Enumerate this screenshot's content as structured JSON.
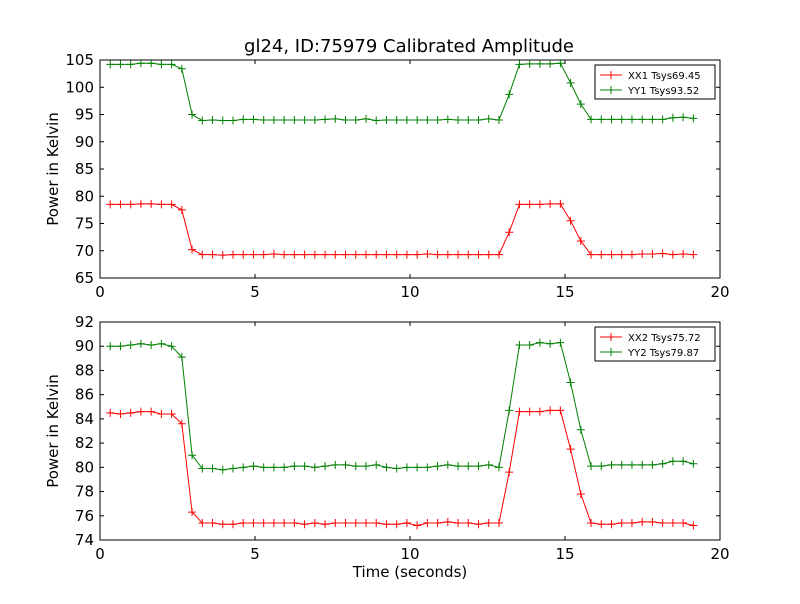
{
  "title": "gl24, ID:75979 Calibrated Amplitude",
  "colors": {
    "red": "#ff0000",
    "green": "#008000",
    "axis": "#000000",
    "background": "#ffffff"
  },
  "chart_data": [
    {
      "type": "line",
      "title": "gl24, ID:75979 Calibrated Amplitude",
      "xlabel": "",
      "ylabel": "Power in Kelvin",
      "xlim": [
        0,
        20
      ],
      "ylim": [
        65,
        105
      ],
      "xticks": [
        0,
        5,
        10,
        15,
        20
      ],
      "yticks": [
        65,
        70,
        75,
        80,
        85,
        90,
        95,
        100,
        105
      ],
      "grid": false,
      "legend_position": "top-right",
      "marker": "plus",
      "x": [
        0.33,
        0.66,
        0.99,
        1.32,
        1.65,
        1.98,
        2.31,
        2.64,
        2.97,
        3.3,
        3.63,
        3.96,
        4.29,
        4.62,
        4.95,
        5.28,
        5.61,
        5.94,
        6.27,
        6.6,
        6.93,
        7.26,
        7.59,
        7.92,
        8.25,
        8.58,
        8.91,
        9.24,
        9.57,
        9.9,
        10.23,
        10.56,
        10.89,
        11.22,
        11.55,
        11.88,
        12.21,
        12.54,
        12.87,
        13.2,
        13.53,
        13.86,
        14.19,
        14.52,
        14.85,
        15.18,
        15.51,
        15.84,
        16.17,
        16.5,
        16.83,
        17.16,
        17.49,
        17.82,
        18.15,
        18.48,
        18.81,
        19.14
      ],
      "series": [
        {
          "name": "XX1 Tsys69.45",
          "color": "#ff0000",
          "values": [
            78.5,
            78.5,
            78.5,
            78.6,
            78.6,
            78.5,
            78.5,
            77.5,
            70.2,
            69.3,
            69.3,
            69.2,
            69.3,
            69.3,
            69.3,
            69.3,
            69.4,
            69.3,
            69.3,
            69.3,
            69.3,
            69.3,
            69.3,
            69.3,
            69.3,
            69.3,
            69.3,
            69.3,
            69.3,
            69.3,
            69.3,
            69.4,
            69.3,
            69.3,
            69.3,
            69.3,
            69.3,
            69.3,
            69.3,
            73.4,
            78.5,
            78.5,
            78.5,
            78.6,
            78.6,
            75.5,
            71.8,
            69.3,
            69.3,
            69.3,
            69.3,
            69.3,
            69.4,
            69.4,
            69.5,
            69.3,
            69.4,
            69.3
          ]
        },
        {
          "name": "YY1 Tsys93.52",
          "color": "#008000",
          "values": [
            104.2,
            104.2,
            104.2,
            104.4,
            104.4,
            104.2,
            104.2,
            103.4,
            95.0,
            93.9,
            94.0,
            93.9,
            93.9,
            94.1,
            94.1,
            94.0,
            94.0,
            94.0,
            94.0,
            94.0,
            94.0,
            94.1,
            94.2,
            94.0,
            94.0,
            94.2,
            93.9,
            94.0,
            94.0,
            94.0,
            94.0,
            94.0,
            94.0,
            94.1,
            94.0,
            94.0,
            94.0,
            94.2,
            94.0,
            98.7,
            104.2,
            104.3,
            104.3,
            104.3,
            104.4,
            100.8,
            96.9,
            94.1,
            94.1,
            94.1,
            94.1,
            94.1,
            94.1,
            94.1,
            94.1,
            94.4,
            94.5,
            94.3
          ]
        }
      ]
    },
    {
      "type": "line",
      "title": "",
      "xlabel": "Time (seconds)",
      "ylabel": "Power in Kelvin",
      "xlim": [
        0,
        20
      ],
      "ylim": [
        74,
        92
      ],
      "xticks": [
        0,
        5,
        10,
        15,
        20
      ],
      "yticks": [
        74,
        76,
        78,
        80,
        82,
        84,
        86,
        88,
        90,
        92
      ],
      "grid": false,
      "legend_position": "top-right",
      "marker": "plus",
      "x": [
        0.33,
        0.66,
        0.99,
        1.32,
        1.65,
        1.98,
        2.31,
        2.64,
        2.97,
        3.3,
        3.63,
        3.96,
        4.29,
        4.62,
        4.95,
        5.28,
        5.61,
        5.94,
        6.27,
        6.6,
        6.93,
        7.26,
        7.59,
        7.92,
        8.25,
        8.58,
        8.91,
        9.24,
        9.57,
        9.9,
        10.23,
        10.56,
        10.89,
        11.22,
        11.55,
        11.88,
        12.21,
        12.54,
        12.87,
        13.2,
        13.53,
        13.86,
        14.19,
        14.52,
        14.85,
        15.18,
        15.51,
        15.84,
        16.17,
        16.5,
        16.83,
        17.16,
        17.49,
        17.82,
        18.15,
        18.48,
        18.81,
        19.14
      ],
      "series": [
        {
          "name": "XX2 Tsys75.72",
          "color": "#ff0000",
          "values": [
            84.5,
            84.4,
            84.5,
            84.6,
            84.6,
            84.4,
            84.4,
            83.6,
            76.3,
            75.4,
            75.4,
            75.3,
            75.3,
            75.4,
            75.4,
            75.4,
            75.4,
            75.4,
            75.4,
            75.3,
            75.4,
            75.3,
            75.4,
            75.4,
            75.4,
            75.4,
            75.4,
            75.3,
            75.3,
            75.4,
            75.2,
            75.4,
            75.4,
            75.5,
            75.4,
            75.4,
            75.3,
            75.4,
            75.4,
            79.6,
            84.6,
            84.6,
            84.6,
            84.7,
            84.7,
            81.5,
            77.8,
            75.4,
            75.3,
            75.3,
            75.4,
            75.4,
            75.5,
            75.5,
            75.4,
            75.4,
            75.4,
            75.2
          ]
        },
        {
          "name": "YY2 Tsys79.87",
          "color": "#008000",
          "values": [
            90.0,
            90.0,
            90.1,
            90.2,
            90.1,
            90.2,
            90.0,
            89.1,
            81.0,
            79.9,
            79.9,
            79.8,
            79.9,
            80.0,
            80.1,
            80.0,
            80.0,
            80.0,
            80.1,
            80.1,
            80.0,
            80.1,
            80.2,
            80.2,
            80.1,
            80.1,
            80.2,
            80.0,
            79.9,
            80.0,
            80.0,
            80.0,
            80.1,
            80.2,
            80.1,
            80.1,
            80.1,
            80.2,
            80.0,
            84.7,
            90.1,
            90.1,
            90.3,
            90.2,
            90.3,
            87.0,
            83.1,
            80.1,
            80.1,
            80.2,
            80.2,
            80.2,
            80.2,
            80.2,
            80.3,
            80.5,
            80.5,
            80.3
          ]
        }
      ]
    }
  ]
}
